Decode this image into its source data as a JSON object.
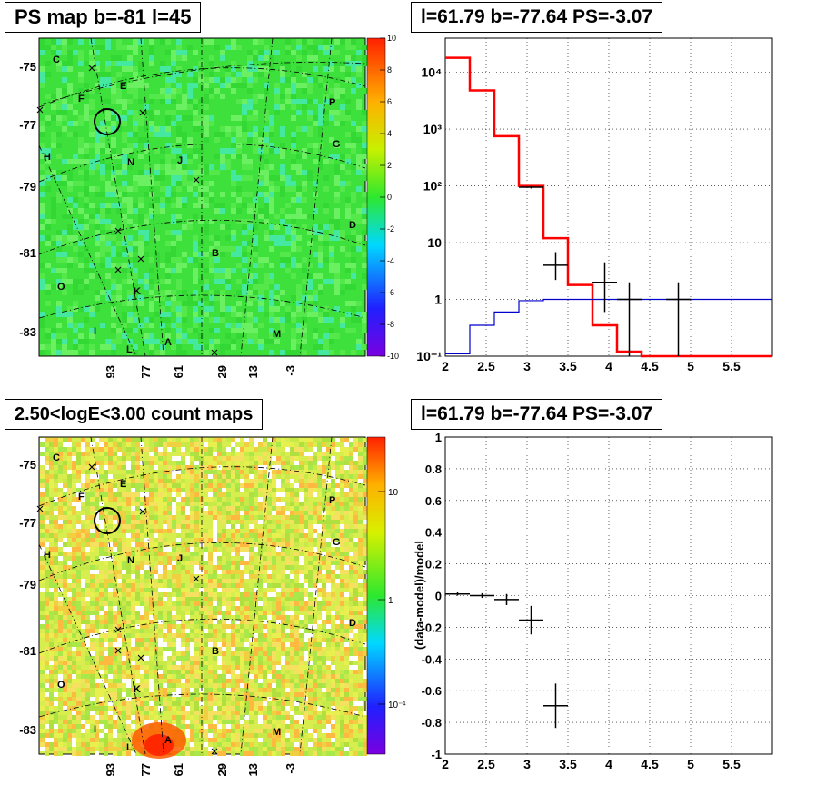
{
  "panels": {
    "top_left_title": "PS map b=-81 l=45",
    "top_right_title": "l=61.79 b=-77.64 PS=-3.07",
    "bottom_left_title": "2.50<logE<3.00 count maps",
    "bottom_right_title": "l=61.79 b=-77.64 PS=-3.07"
  },
  "sky_map": {
    "y_ticks": [
      "-75",
      "-77",
      "-79",
      "-81",
      "-83"
    ],
    "x_ticks": [
      "93",
      "77",
      "61",
      "29",
      "13",
      "-3"
    ],
    "source_letters": [
      "C",
      "E",
      "F",
      "P",
      "H",
      "G",
      "N",
      "J",
      "D",
      "B",
      "O",
      "K",
      "I",
      "L",
      "A",
      "M"
    ],
    "ps_colorbar_ticks": [
      "10",
      "8",
      "6",
      "4",
      "2",
      "0",
      "-2",
      "-4",
      "-6",
      "-8",
      "-10"
    ],
    "count_colorbar_ticks": [
      "10",
      "1",
      "10⁻¹"
    ],
    "colors": {
      "ps_background": "#3ee03b",
      "count_background": "#d8ee4e"
    }
  },
  "chart_data": [
    {
      "type": "line",
      "panel": "spectrum",
      "yscale": "log",
      "xlim": [
        2,
        6
      ],
      "ylim": [
        0.1,
        40000
      ],
      "x_ticks": [
        "2",
        "2.5",
        "3",
        "3.5",
        "4",
        "4.5",
        "5",
        "5.5"
      ],
      "y_ticks": [
        "10⁻¹",
        "1",
        "10",
        "10²",
        "10³",
        "10⁴"
      ],
      "grid": true,
      "series": [
        {
          "style": "step",
          "color": "#ff0000",
          "edges": [
            2.0,
            2.3,
            2.6,
            2.9,
            3.2,
            3.5,
            3.8,
            4.1,
            4.4,
            6.0
          ],
          "values": [
            18000,
            4800,
            750,
            100,
            12,
            1.8,
            0.35,
            0.12,
            0.1
          ]
        },
        {
          "style": "step",
          "color": "#0000cc",
          "edges": [
            2.0,
            2.3,
            2.6,
            2.9,
            3.2,
            3.5,
            3.8,
            4.1,
            4.4,
            4.7,
            5.0,
            6.0
          ],
          "values": [
            0.11,
            0.35,
            0.6,
            0.95,
            1.0,
            1.0,
            1.0,
            1.0,
            1.0,
            1.0,
            1.0
          ]
        },
        {
          "style": "errorbars",
          "color": "#000000",
          "points": [
            {
              "x": 3.05,
              "y": 95,
              "xerr": 0.15,
              "ylo": 90,
              "yhi": 100
            },
            {
              "x": 3.35,
              "y": 4,
              "xerr": 0.15,
              "ylo": 2.2,
              "yhi": 6.8
            },
            {
              "x": 3.95,
              "y": 2,
              "xerr": 0.15,
              "ylo": 0.6,
              "yhi": 4.5
            },
            {
              "x": 4.25,
              "y": 1,
              "xerr": 0.15,
              "ylo": 0.1,
              "yhi": 2
            },
            {
              "x": 4.85,
              "y": 1,
              "xerr": 0.15,
              "ylo": 0.1,
              "yhi": 2
            }
          ]
        }
      ]
    },
    {
      "type": "scatter",
      "panel": "residual",
      "xlim": [
        2,
        6
      ],
      "ylim": [
        -1,
        1
      ],
      "ylabel": "(data-model)/model",
      "x_ticks": [
        "2",
        "2.5",
        "3",
        "3.5",
        "4",
        "4.5",
        "5",
        "5.5"
      ],
      "y_ticks": [
        "1",
        "0.8",
        "0.6",
        "0.4",
        "0.2",
        "0",
        "-0.2",
        "-0.4",
        "-0.6",
        "-0.8",
        "-1"
      ],
      "grid": true,
      "points": [
        {
          "x": 2.15,
          "y": 0.01,
          "xerr": 0.15,
          "yerr": 0.01
        },
        {
          "x": 2.45,
          "y": 0.0,
          "xerr": 0.15,
          "yerr": 0.015
        },
        {
          "x": 2.75,
          "y": -0.025,
          "xerr": 0.15,
          "yerr": 0.035
        },
        {
          "x": 3.05,
          "y": -0.155,
          "xerr": 0.15,
          "yerr": 0.09
        },
        {
          "x": 3.35,
          "y": -0.695,
          "xerr": 0.15,
          "yerr": 0.14
        }
      ]
    }
  ]
}
